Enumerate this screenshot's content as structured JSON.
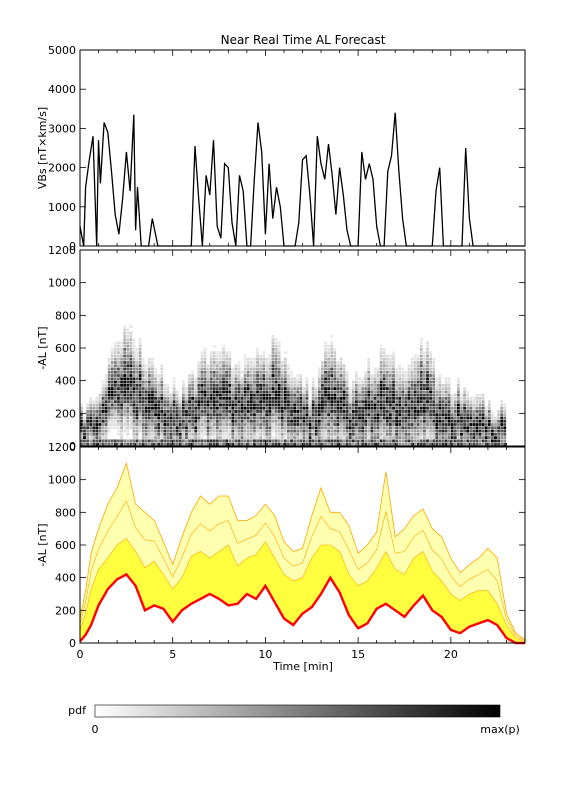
{
  "title": "Near Real Time AL Forecast",
  "colors": {
    "background": "#ffffff",
    "axis": "#000000",
    "vbs_line": "#000000",
    "fan_outer": "#ffa500",
    "fan_inner": "#ffff40",
    "fan_light": "#ffffb0",
    "median": "#ff0000"
  },
  "colorbar": {
    "label": "pdf",
    "min_label": "0",
    "max_label": "max(p)",
    "gradient": [
      "#ffffff",
      "#000000"
    ]
  },
  "chart_data": [
    {
      "type": "line",
      "ylabel": "VBs [nT×km/s]",
      "ylim": [
        0,
        5000
      ],
      "yticks": [
        0,
        1000,
        2000,
        3000,
        4000,
        5000
      ],
      "xlim": [
        0,
        24
      ],
      "series": [
        {
          "x": [
            0,
            0.2,
            0.3,
            0.5,
            0.7,
            0.9,
            1.0,
            1.1,
            1.3,
            1.5,
            1.7,
            1.9,
            2.1,
            2.3,
            2.5,
            2.7,
            2.9,
            3.0,
            3.1,
            3.3,
            3.5,
            3.7,
            3.9,
            4.2,
            4.6,
            5.0,
            5.4,
            5.7,
            6.0,
            6.2,
            6.4,
            6.6,
            6.8,
            7.0,
            7.2,
            7.4,
            7.6,
            7.8,
            8.0,
            8.2,
            8.4,
            8.6,
            8.8,
            9.0,
            9.2,
            9.4,
            9.6,
            9.8,
            10.0,
            10.2,
            10.4,
            10.6,
            10.8,
            11.0,
            11.2,
            11.4,
            11.6,
            11.8,
            12.0,
            12.2,
            12.4,
            12.6,
            12.8,
            13.0,
            13.2,
            13.4,
            13.6,
            13.8,
            14.0,
            14.2,
            14.4,
            14.6,
            14.8,
            15.0,
            15.2,
            15.4,
            15.6,
            15.8,
            16.0,
            16.2,
            16.4,
            16.6,
            16.8,
            17.0,
            17.2,
            17.4,
            17.6,
            17.8,
            18.0,
            18.2,
            18.4,
            18.6,
            18.8,
            19.0,
            19.2,
            19.4,
            19.6,
            19.8,
            20.0,
            20.2,
            20.4,
            20.6,
            20.8,
            21.0,
            21.2,
            21.4,
            21.6,
            21.8,
            22.0,
            22.5,
            23.0,
            24.0
          ],
          "y": [
            500,
            0,
            1500,
            2200,
            2800,
            0,
            2700,
            1600,
            3150,
            2900,
            1900,
            800,
            300,
            1200,
            2400,
            1400,
            3350,
            400,
            1500,
            0,
            0,
            0,
            700,
            0,
            0,
            0,
            0,
            0,
            0,
            2550,
            1200,
            0,
            1800,
            1300,
            2700,
            500,
            200,
            2100,
            2000,
            600,
            0,
            1800,
            1400,
            0,
            0,
            1700,
            3150,
            2400,
            300,
            2100,
            700,
            1500,
            1000,
            0,
            0,
            0,
            0,
            600,
            2200,
            2300,
            1300,
            0,
            2800,
            2100,
            1700,
            2600,
            1800,
            800,
            2000,
            1300,
            400,
            0,
            0,
            0,
            2400,
            1700,
            2100,
            1700,
            500,
            0,
            0,
            1900,
            2300,
            3400,
            1900,
            700,
            0,
            0,
            0,
            0,
            0,
            0,
            0,
            0,
            1400,
            2000,
            0,
            0,
            0,
            0,
            0,
            0,
            2500,
            700,
            0,
            0,
            0,
            0,
            0,
            0,
            0,
            0
          ]
        }
      ]
    },
    {
      "type": "heatmap",
      "ylabel": "-AL [nT]",
      "ylim": [
        0,
        1200
      ],
      "yticks": [
        0,
        200,
        400,
        600,
        800,
        1000,
        1200
      ],
      "xlim": [
        0,
        24
      ],
      "x": [
        0.5,
        1.5,
        2.5,
        3.5,
        4.5,
        5.5,
        6.5,
        7.5,
        8.5,
        9.5,
        10.5,
        11.5,
        12.5,
        13.5,
        14.5,
        15.5,
        16.5,
        17.5,
        18.5,
        19.5,
        20.5,
        21.5,
        22.5
      ],
      "peak_al": [
        110,
        280,
        400,
        260,
        200,
        120,
        250,
        290,
        220,
        260,
        310,
        210,
        130,
        340,
        150,
        210,
        260,
        180,
        300,
        150,
        130,
        120,
        70
      ],
      "spread_al": [
        150,
        250,
        400,
        330,
        280,
        220,
        300,
        360,
        300,
        330,
        380,
        280,
        220,
        420,
        280,
        300,
        380,
        320,
        400,
        280,
        250,
        220,
        180
      ]
    },
    {
      "type": "area",
      "xlabel": "Time [min]",
      "ylabel": "-AL [nT]",
      "ylim": [
        0,
        1200
      ],
      "yticks": [
        0,
        200,
        400,
        600,
        800,
        1000,
        1200
      ],
      "xlim": [
        0,
        24
      ],
      "xticks": [
        0,
        5,
        10,
        15,
        20
      ],
      "x": [
        0,
        0.3,
        0.6,
        1.0,
        1.5,
        2.0,
        2.5,
        3.0,
        3.5,
        4.0,
        4.5,
        5.0,
        5.5,
        6.0,
        6.5,
        7.0,
        7.5,
        8.0,
        8.5,
        9.0,
        9.5,
        10.0,
        10.5,
        11.0,
        11.5,
        12.0,
        12.5,
        13.0,
        13.5,
        14.0,
        14.5,
        15.0,
        15.5,
        16.0,
        16.5,
        17.0,
        17.5,
        18.0,
        18.5,
        19.0,
        19.5,
        20.0,
        20.5,
        21.0,
        21.5,
        22.0,
        22.5,
        23.0,
        23.5,
        24.0
      ],
      "median": [
        10,
        50,
        110,
        230,
        330,
        390,
        420,
        350,
        200,
        230,
        210,
        130,
        200,
        240,
        270,
        300,
        270,
        230,
        240,
        300,
        270,
        350,
        250,
        150,
        110,
        180,
        220,
        300,
        400,
        310,
        170,
        90,
        120,
        210,
        240,
        200,
        160,
        230,
        290,
        200,
        160,
        80,
        60,
        100,
        120,
        140,
        110,
        30,
        0,
        0
      ],
      "inner_upper": [
        80,
        180,
        330,
        450,
        520,
        600,
        640,
        560,
        460,
        500,
        420,
        330,
        400,
        530,
        560,
        520,
        560,
        600,
        470,
        520,
        540,
        620,
        520,
        420,
        380,
        400,
        520,
        600,
        600,
        560,
        420,
        350,
        380,
        460,
        560,
        450,
        420,
        520,
        560,
        440,
        380,
        300,
        260,
        300,
        320,
        320,
        240,
        110,
        30,
        10
      ],
      "outer_upper": [
        150,
        320,
        550,
        700,
        850,
        950,
        1100,
        850,
        800,
        750,
        620,
        480,
        650,
        800,
        900,
        850,
        900,
        900,
        750,
        750,
        780,
        850,
        780,
        620,
        560,
        580,
        780,
        950,
        800,
        800,
        720,
        550,
        600,
        680,
        1050,
        650,
        700,
        780,
        820,
        700,
        650,
        520,
        430,
        480,
        520,
        580,
        520,
        180,
        60,
        20
      ]
    }
  ]
}
